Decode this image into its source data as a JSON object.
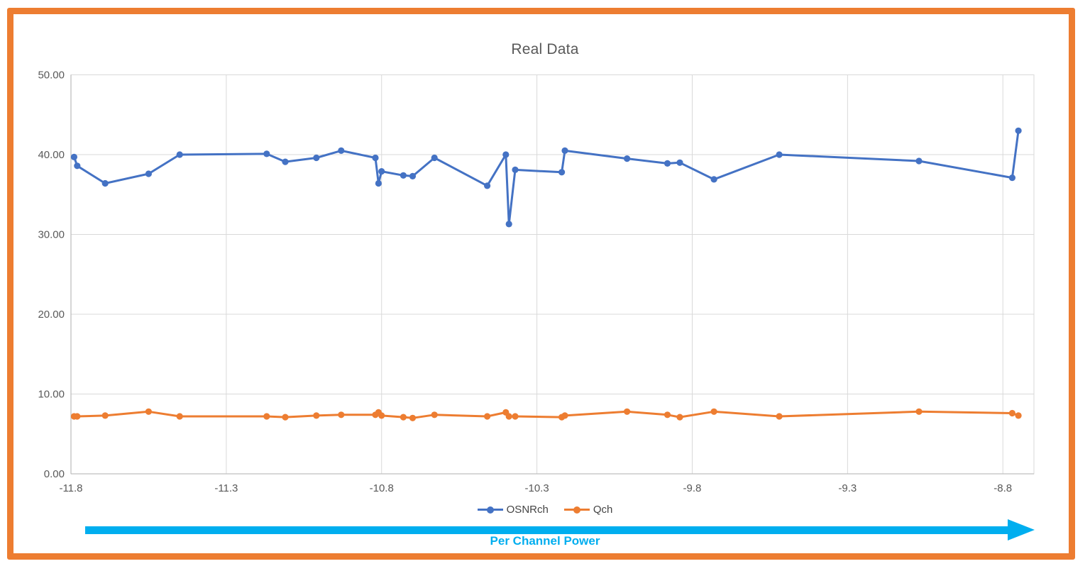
{
  "window": {
    "border_color": "#ED7D31",
    "background": "#FFFFFF"
  },
  "chart_data": {
    "type": "line",
    "title": "Real Data",
    "xlabel": "Per Channel Power",
    "ylabel": "",
    "grid": true,
    "legend_position": "bottom",
    "xlim": [
      -11.8,
      -8.7
    ],
    "ylim": [
      0,
      50
    ],
    "xticks": [
      "-11.8",
      "-11.3",
      "-10.8",
      "-10.3",
      "-9.8",
      "-9.3",
      "-8.8"
    ],
    "xtick_values": [
      -11.8,
      -11.3,
      -10.8,
      -10.3,
      -9.8,
      -9.3,
      -8.8
    ],
    "yticks": [
      "0.00",
      "10.00",
      "20.00",
      "30.00",
      "40.00",
      "50.00"
    ],
    "ytick_values": [
      0,
      10,
      20,
      30,
      40,
      50
    ],
    "x": [
      -11.79,
      -11.78,
      -11.69,
      -11.55,
      -11.45,
      -11.17,
      -11.11,
      -11.01,
      -10.93,
      -10.82,
      -10.81,
      -10.8,
      -10.73,
      -10.7,
      -10.63,
      -10.46,
      -10.4,
      -10.39,
      -10.37,
      -10.22,
      -10.21,
      -10.01,
      -9.88,
      -9.84,
      -9.73,
      -9.52,
      -9.07,
      -8.77,
      -8.75
    ],
    "series": [
      {
        "name": "OSNRch",
        "color": "#4472C4",
        "values": [
          39.7,
          38.6,
          36.4,
          37.6,
          40.0,
          40.1,
          39.1,
          39.6,
          40.5,
          39.6,
          36.4,
          37.9,
          37.4,
          37.3,
          39.6,
          36.1,
          40.0,
          31.3,
          38.1,
          37.8,
          40.5,
          39.5,
          38.9,
          39.0,
          36.9,
          40.0,
          39.2,
          37.1,
          43.0
        ]
      },
      {
        "name": "Qch",
        "color": "#ED7D31",
        "values": [
          7.2,
          7.2,
          7.3,
          7.8,
          7.2,
          7.2,
          7.1,
          7.3,
          7.4,
          7.4,
          7.7,
          7.3,
          7.1,
          7.0,
          7.4,
          7.2,
          7.7,
          7.2,
          7.2,
          7.1,
          7.3,
          7.8,
          7.4,
          7.1,
          7.8,
          7.2,
          7.8,
          7.6,
          7.3
        ]
      }
    ],
    "styles": {
      "gridline_color": "#D9D9D9",
      "axis_line_color": "#BFBFBF",
      "tick_text_color": "#595959",
      "title_color": "#595959"
    }
  },
  "annotation": {
    "arrow_color": "#00AEEF",
    "arrow_label": "Per Channel Power"
  }
}
